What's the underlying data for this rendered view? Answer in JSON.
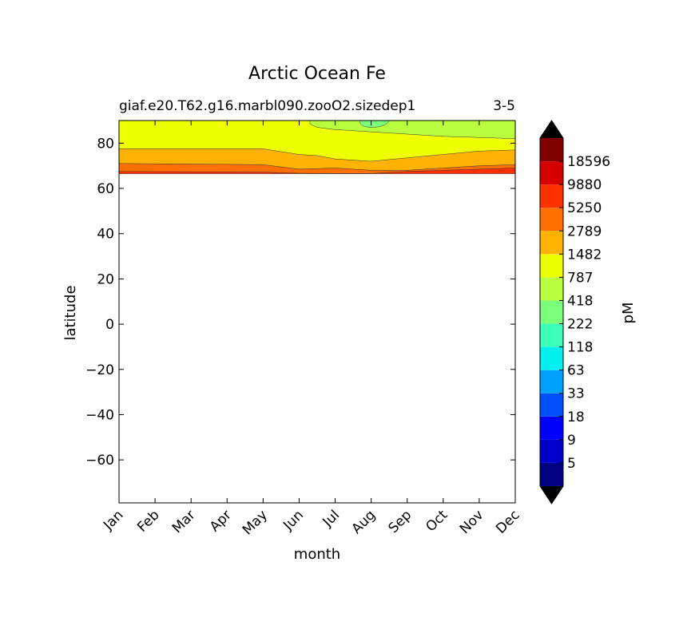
{
  "chart_data": {
    "type": "contour",
    "title": "Arctic Ocean Fe",
    "subtitle_left": "giaf.e20.T62.g16.marbl090.zooO2.sizedep1",
    "subtitle_right": "3-5",
    "xlabel": "month",
    "ylabel": "latitude",
    "x_categories": [
      "Jan",
      "Feb",
      "Mar",
      "Apr",
      "May",
      "Jun",
      "Jul",
      "Aug",
      "Sep",
      "Oct",
      "Nov",
      "Dec"
    ],
    "ylim": [
      -79,
      90
    ],
    "yticks": [
      "80",
      "60",
      "40",
      "20",
      "0",
      "−20",
      "−40",
      "−60"
    ],
    "ytick_values": [
      80,
      60,
      40,
      20,
      0,
      -20,
      -40,
      -60
    ],
    "data_lat_range": [
      66.5,
      90
    ],
    "colorbar": {
      "label": "pM",
      "extend": "both",
      "level_labels": [
        "18596",
        "9880",
        "5250",
        "2789",
        "1482",
        "787",
        "418",
        "222",
        "118",
        "63",
        "33",
        "18",
        "9",
        "5"
      ],
      "colors": [
        "#000080",
        "#0000cd",
        "#0000ff",
        "#0050ff",
        "#00a0ff",
        "#00f0f0",
        "#3dffb9",
        "#7bff7b",
        "#b9ff3d",
        "#f0ff00",
        "#ffb300",
        "#ff7000",
        "#ff3000",
        "#d70000",
        "#800000"
      ],
      "under_color": "#000000",
      "over_color": "#000000"
    },
    "contour_bands": [
      {
        "level": "1482-2789",
        "color": "#ffb300",
        "boundary": [
          [
            0,
            71
          ],
          [
            4,
            70.5
          ],
          [
            5,
            68.5
          ],
          [
            6,
            69
          ],
          [
            6.5,
            68.5
          ],
          [
            7,
            68
          ],
          [
            8,
            68
          ],
          [
            9,
            69
          ],
          [
            10,
            70
          ],
          [
            11,
            70.5
          ]
        ]
      },
      {
        "level": "787-1482",
        "color": "#f0ff00",
        "boundary": [
          [
            0,
            77.5
          ],
          [
            4,
            77.5
          ],
          [
            5,
            75
          ],
          [
            5.5,
            74.5
          ],
          [
            6,
            73
          ],
          [
            7,
            72
          ],
          [
            8,
            73.5
          ],
          [
            9,
            75
          ],
          [
            10,
            76.5
          ],
          [
            11,
            77
          ]
        ]
      },
      {
        "level": "418-787",
        "color": "#b9ff3d",
        "region": "upper-right"
      },
      {
        "level": "222-418",
        "color": "#7bff7b",
        "region": "patch near Aug, ~87N"
      }
    ]
  }
}
